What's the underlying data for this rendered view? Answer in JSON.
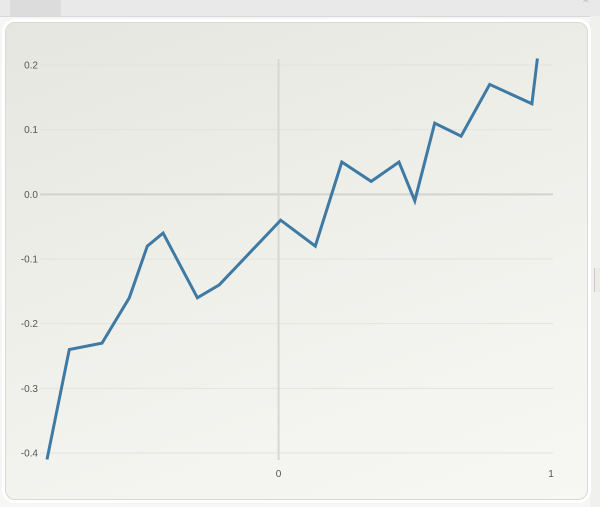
{
  "chart_data": {
    "type": "line",
    "title": "",
    "xlabel": "",
    "ylabel": "",
    "xlim": [
      -0.85,
      1
    ],
    "ylim": [
      -0.4,
      0.2
    ],
    "x_ticks": [
      0,
      1
    ],
    "y_ticks": [
      0.2,
      0.1,
      0.0,
      -0.1,
      -0.2,
      -0.3,
      -0.4
    ],
    "y_tick_labels": [
      "0.2",
      "0.1",
      "0.0",
      "-0.1",
      "-0.2",
      "-0.3",
      "-0.4"
    ],
    "x_tick_labels": [
      "0",
      "1"
    ],
    "grid": true,
    "series": [
      {
        "color": "#3e7aa3",
        "x": [
          -0.85,
          -0.768,
          -0.648,
          -0.548,
          -0.482,
          -0.424,
          -0.298,
          -0.218,
          0.008,
          0.135,
          0.232,
          0.34,
          0.442,
          0.5,
          0.573,
          0.67,
          0.775,
          0.93,
          0.95
        ],
        "y": [
          -0.41,
          -0.24,
          -0.23,
          -0.16,
          -0.08,
          -0.06,
          -0.16,
          -0.14,
          -0.04,
          -0.08,
          0.05,
          0.02,
          0.05,
          -0.01,
          0.11,
          0.09,
          0.17,
          0.14,
          0.21
        ]
      }
    ]
  }
}
